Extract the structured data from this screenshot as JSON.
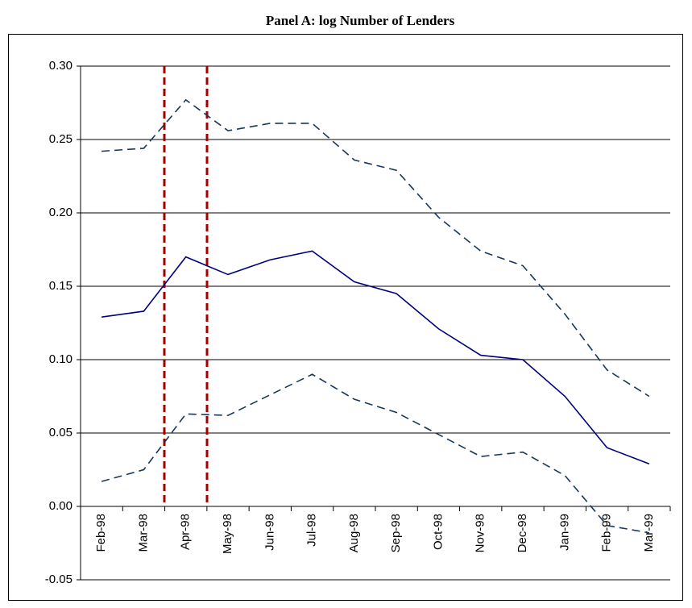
{
  "chart_data": {
    "type": "line",
    "title": "Panel A: log Number of Lenders",
    "categories": [
      "Feb-98",
      "Mar-98",
      "Apr-98",
      "May-98",
      "Jun-98",
      "Jul-98",
      "Aug-98",
      "Sep-98",
      "Oct-98",
      "Nov-98",
      "Dec-98",
      "Jan-99",
      "Feb-99",
      "Mar-99"
    ],
    "series": [
      {
        "color": "#17375e",
        "dashed": true,
        "values": [
          0.242,
          0.244,
          0.277,
          0.256,
          0.261,
          0.261,
          0.236,
          0.229,
          0.197,
          0.174,
          0.164,
          0.131,
          0.093,
          0.075
        ]
      },
      {
        "color": "#000080",
        "dashed": false,
        "values": [
          0.129,
          0.133,
          0.17,
          0.158,
          0.168,
          0.174,
          0.153,
          0.145,
          0.121,
          0.103,
          0.1,
          0.075,
          0.04,
          0.029
        ]
      },
      {
        "color": "#17375e",
        "dashed": true,
        "values": [
          0.017,
          0.025,
          0.063,
          0.062,
          0.076,
          0.09,
          0.073,
          0.064,
          0.049,
          0.034,
          0.037,
          0.021,
          -0.013,
          -0.018
        ]
      }
    ],
    "ylim": [
      -0.05,
      0.3
    ],
    "yticks": [
      {
        "value": -0.05,
        "label": "-0.05"
      },
      {
        "value": 0,
        "label": "0.00"
      },
      {
        "value": 0.05,
        "label": "0.05"
      },
      {
        "value": 0.1,
        "label": "0.10"
      },
      {
        "value": 0.15,
        "label": "0.15"
      },
      {
        "value": 0.2,
        "label": "0.20"
      },
      {
        "value": 0.25,
        "label": "0.25"
      },
      {
        "value": 0.3,
        "label": "0.30"
      }
    ],
    "grid": true
  }
}
